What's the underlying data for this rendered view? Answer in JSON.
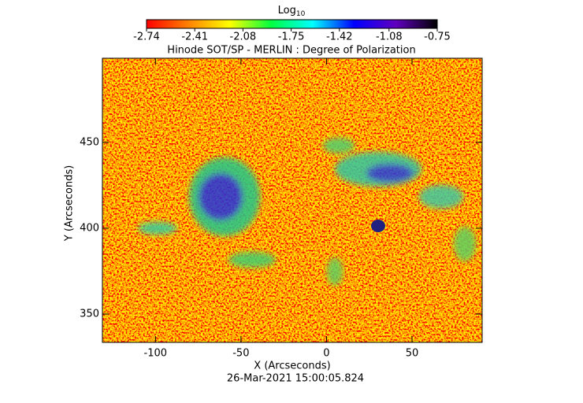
{
  "chart_data": {
    "type": "image",
    "title": "Hinode SOT/SP - MERLIN : Degree of Polarization",
    "subtitle": "26-Mar-2021 15:00:05.824",
    "x_label": "X (Arcseconds)",
    "y_label": "Y (Arcseconds)",
    "xlim": [
      -131,
      91
    ],
    "ylim": [
      333.5,
      499
    ],
    "xticks": [
      -100,
      -50,
      0,
      50
    ],
    "yticks": [
      350,
      400,
      450
    ],
    "colorbar": {
      "label": "Log",
      "label_subscript": "10",
      "clim": [
        -2.74,
        -0.75
      ],
      "ticks": [
        -2.74,
        -2.41,
        -2.08,
        -1.75,
        -1.42,
        -1.08,
        -0.75
      ],
      "colors": [
        "#ff0000",
        "#ff8000",
        "#ffff00",
        "#00ff40",
        "#00ffff",
        "#0000ff",
        "#6000c0",
        "#000000"
      ]
    }
  }
}
